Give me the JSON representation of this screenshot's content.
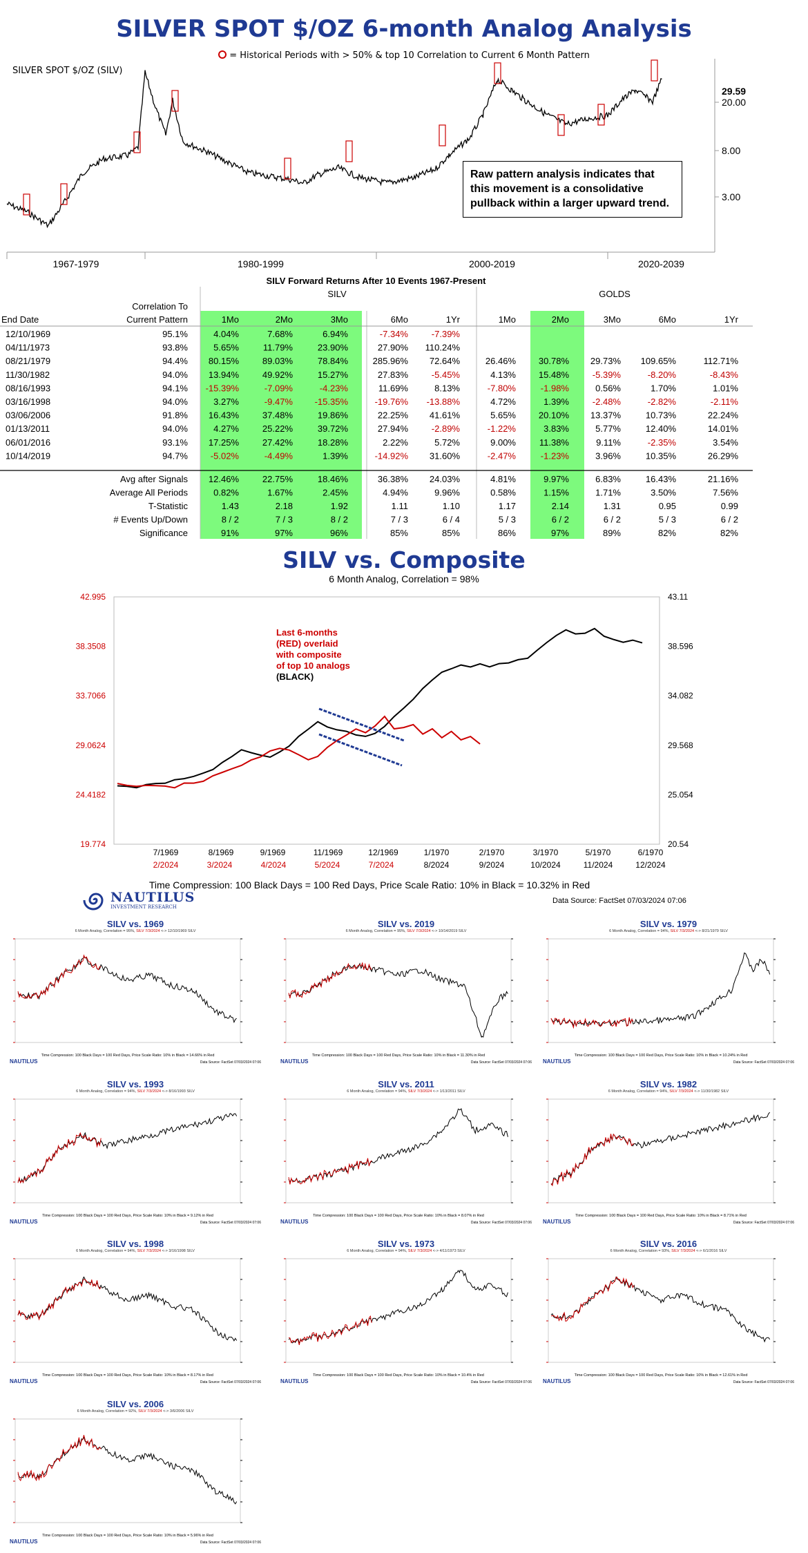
{
  "header": {
    "title": "SILVER SPOT $/OZ 6-month Analog Analysis",
    "legend_text": "= Historical Periods with > 50% & top 10 Correlation to Current 6 Month Pattern",
    "series_label": "SILVER SPOT $/OZ (SILV)"
  },
  "note_box": "Raw pattern analysis indicates that this movement is a consolidative pullback within a larger upward trend.",
  "chart_data": [
    {
      "type": "line",
      "id": "long-history",
      "title": "SILVER SPOT $/OZ (SILV)",
      "y_scale": "log",
      "y_ticks": [
        "3.00",
        "8.00",
        "20.00"
      ],
      "last_value": "29.59",
      "x_groups": [
        "1967-1979",
        "1980-1999",
        "2000-2019",
        "2020-2039"
      ],
      "highlight_dates": [
        "12/10/1969",
        "04/11/1973",
        "08/21/1979",
        "11/30/1982",
        "08/16/1993",
        "03/16/1998",
        "03/06/2006",
        "01/13/2011",
        "06/01/2016",
        "10/14/2019",
        "07/03/2024"
      ]
    },
    {
      "type": "table",
      "id": "forward-returns",
      "title": "SILV Forward Returns After 10 Events 1967-Present",
      "group_labels": [
        "SILV",
        "GOLDS"
      ],
      "label_headers": [
        "End Date",
        "Correlation To Current Pattern"
      ],
      "columns": [
        "1Mo",
        "2Mo",
        "3Mo",
        "6Mo",
        "1Yr",
        "1Mo",
        "2Mo",
        "3Mo",
        "6Mo",
        "1Yr"
      ],
      "rows": [
        {
          "date": "12/10/1969",
          "corr": "95.1%",
          "vals": [
            "4.04%",
            "7.68%",
            "6.94%",
            "-7.34%",
            "-7.39%",
            "",
            "",
            "",
            "",
            ""
          ]
        },
        {
          "date": "04/11/1973",
          "corr": "93.8%",
          "vals": [
            "5.65%",
            "11.79%",
            "23.90%",
            "27.90%",
            "110.24%",
            "",
            "",
            "",
            "",
            ""
          ]
        },
        {
          "date": "08/21/1979",
          "corr": "94.4%",
          "vals": [
            "80.15%",
            "89.03%",
            "78.84%",
            "285.96%",
            "72.64%",
            "26.46%",
            "30.78%",
            "29.73%",
            "109.65%",
            "112.71%"
          ]
        },
        {
          "date": "11/30/1982",
          "corr": "94.0%",
          "vals": [
            "13.94%",
            "49.92%",
            "15.27%",
            "27.83%",
            "-5.45%",
            "4.13%",
            "15.48%",
            "-5.39%",
            "-8.20%",
            "-8.43%"
          ]
        },
        {
          "date": "08/16/1993",
          "corr": "94.1%",
          "vals": [
            "-15.39%",
            "-7.09%",
            "-4.23%",
            "11.69%",
            "8.13%",
            "-7.80%",
            "-1.98%",
            "0.56%",
            "1.70%",
            "1.01%"
          ]
        },
        {
          "date": "03/16/1998",
          "corr": "94.0%",
          "vals": [
            "3.27%",
            "-9.47%",
            "-15.35%",
            "-19.76%",
            "-13.88%",
            "4.72%",
            "1.39%",
            "-2.48%",
            "-2.82%",
            "-2.11%"
          ]
        },
        {
          "date": "03/06/2006",
          "corr": "91.8%",
          "vals": [
            "16.43%",
            "37.48%",
            "19.86%",
            "22.25%",
            "41.61%",
            "5.65%",
            "20.10%",
            "13.37%",
            "10.73%",
            "22.24%"
          ]
        },
        {
          "date": "01/13/2011",
          "corr": "94.0%",
          "vals": [
            "4.27%",
            "25.22%",
            "39.72%",
            "27.94%",
            "-2.89%",
            "-1.22%",
            "3.83%",
            "5.77%",
            "12.40%",
            "14.01%"
          ]
        },
        {
          "date": "06/01/2016",
          "corr": "93.1%",
          "vals": [
            "17.25%",
            "27.42%",
            "18.28%",
            "2.22%",
            "5.72%",
            "9.00%",
            "11.38%",
            "9.11%",
            "-2.35%",
            "3.54%"
          ]
        },
        {
          "date": "10/14/2019",
          "corr": "94.7%",
          "vals": [
            "-5.02%",
            "-4.49%",
            "1.39%",
            "-14.92%",
            "31.60%",
            "-2.47%",
            "-1.23%",
            "3.96%",
            "10.35%",
            "26.29%"
          ]
        }
      ],
      "summary": [
        {
          "label": "Avg after Signals",
          "vals": [
            "12.46%",
            "22.75%",
            "18.46%",
            "36.38%",
            "24.03%",
            "4.81%",
            "9.97%",
            "6.83%",
            "16.43%",
            "21.16%"
          ]
        },
        {
          "label": "Average All Periods",
          "vals": [
            "0.82%",
            "1.67%",
            "2.45%",
            "4.94%",
            "9.96%",
            "0.58%",
            "1.15%",
            "1.71%",
            "3.50%",
            "7.56%"
          ]
        },
        {
          "label": "T-Statistic",
          "vals": [
            "1.43",
            "2.18",
            "1.92",
            "1.11",
            "1.10",
            "1.17",
            "2.14",
            "1.31",
            "0.95",
            "0.99"
          ]
        },
        {
          "label": "# Events Up/Down",
          "vals": [
            "8 / 2",
            "7 / 3",
            "8 / 2",
            "7 / 3",
            "6 / 4",
            "5 / 3",
            "6 / 2",
            "6 / 2",
            "5 / 3",
            "6 / 2"
          ]
        },
        {
          "label": "Significance",
          "vals": [
            "91%",
            "97%",
            "96%",
            "85%",
            "85%",
            "86%",
            "97%",
            "89%",
            "82%",
            "82%"
          ]
        }
      ],
      "highlight_columns": [
        0,
        1,
        2,
        6
      ],
      "colors": {
        "highlight": "#7dfa7d",
        "negative": "#c00000"
      }
    },
    {
      "type": "line",
      "id": "composite",
      "title": "SILV vs. Composite",
      "subtitle": "6 Month Analog, Correlation = 98%",
      "left_y_ticks": [
        "42.995",
        "38.3508",
        "33.7066",
        "29.0624",
        "24.4182",
        "19.774"
      ],
      "right_y_ticks": [
        "43.11",
        "38.596",
        "34.082",
        "29.568",
        "25.054",
        "20.54"
      ],
      "black_x_labels": [
        "7/1969",
        "8/1969",
        "9/1969",
        "11/1969",
        "12/1969",
        "1/1970",
        "2/1970",
        "3/1970",
        "5/1970",
        "6/1970"
      ],
      "red_x_labels": [
        "2/2024",
        "3/2024",
        "4/2024",
        "5/2024",
        "7/2024",
        "8/2024",
        "9/2024",
        "10/2024",
        "11/2024",
        "12/2024"
      ],
      "series": [
        {
          "name": "Last 6-months (RED) overlaid",
          "color": "#cc0000",
          "values": [
            26.0,
            25.9,
            25.8,
            25.9,
            26.0,
            25.9,
            25.8,
            26.0,
            26.2,
            26.4,
            26.7,
            27.0,
            27.3,
            27.8,
            28.1,
            28.5,
            29.0,
            29.4,
            29.2,
            28.6,
            28.2,
            28.5,
            29.4,
            30.0,
            30.5,
            31.0,
            30.6,
            31.4,
            32.2,
            31.0,
            31.2,
            31.5,
            30.6,
            31.0,
            30.2,
            30.8,
            30.0,
            30.4,
            29.6
          ]
        },
        {
          "name": "composite of top 10 analogs (BLACK)",
          "color": "#000000",
          "values": [
            25.9,
            25.8,
            25.8,
            25.9,
            26.0,
            26.1,
            26.4,
            26.6,
            26.8,
            27.1,
            27.4,
            27.9,
            28.6,
            29.1,
            29.0,
            28.7,
            28.6,
            29.0,
            29.6,
            30.3,
            31.1,
            31.6,
            31.2,
            31.0,
            30.8,
            30.6,
            30.4,
            30.6,
            31.2,
            32.1,
            32.9,
            33.8,
            34.8,
            35.6,
            36.3,
            36.6,
            36.8,
            36.8,
            37.0,
            36.8,
            37.0,
            37.1,
            37.3,
            37.6,
            38.2,
            39.0,
            39.6,
            40.0,
            39.8,
            39.9,
            40.2,
            39.6,
            39.2,
            39.0,
            39.1,
            38.9
          ]
        }
      ]
    }
  ],
  "composite_note": {
    "lines": [
      "Last 6-months",
      "(RED) overlaid",
      "with composite",
      "of top 10 analogs"
    ],
    "black_line": "(BLACK)"
  },
  "composite_footer": "Time Compression: 100 Black Days = 100 Red Days,  Price Scale Ratio: 10% in Black = 10.32% in Red",
  "data_source": "Data Source: FactSet   07/03/2024 07:06",
  "logo": {
    "name": "NAUTILUS",
    "tagline": "INVESTMENT RESEARCH"
  },
  "mini_charts": [
    {
      "title": "SILV vs. 1969",
      "sub": "6 Month Analog, Correlation = 95%,",
      "sub_red": "SILV 7/3/2024",
      "sub_end": "<-> 12/10/1969 SILV",
      "foot": "Time Compression: 100 Black Days = 100 Red Days,  Price Scale Ratio: 10% in Black = 14.66% in Red",
      "shape": "hump"
    },
    {
      "title": "SILV vs. 2019",
      "sub": "6 Month Analog, Correlation = 95%,",
      "sub_red": "SILV 7/3/2024",
      "sub_end": "<-> 10/14/2019 SILV",
      "foot": "Time Compression: 100 Black Days = 100 Red Days,  Price Scale Ratio: 10% in Black = 11.30% in Red",
      "shape": "crash"
    },
    {
      "title": "SILV vs. 1979",
      "sub": "6 Month Analog, Correlation = 94%,",
      "sub_red": "SILV 7/3/2024",
      "sub_end": "<-> 8/21/1979 SILV",
      "foot": "Time Compression: 100 Black Days = 100 Red Days,  Price Scale Ratio: 10% in Black = 10.24% in Red",
      "shape": "spike"
    },
    {
      "title": "SILV vs. 1993",
      "sub": "6 Month Analog, Correlation = 94%,",
      "sub_red": "SILV 7/3/2024",
      "sub_end": "<-> 8/16/1993 SILV",
      "foot": "Time Compression: 100 Black Days = 100 Red Days,  Price Scale Ratio: 10% in Black = 9.12% in Red",
      "shape": "uptrend"
    },
    {
      "title": "SILV vs. 2011",
      "sub": "6 Month Analog, Correlation = 94%,",
      "sub_red": "SILV 7/3/2024",
      "sub_end": "<-> 1/13/2011 SILV",
      "foot": "Time Compression: 100 Black Days = 100 Red Days,  Price Scale Ratio: 10% in Black = 8.07% in Red",
      "shape": "rally"
    },
    {
      "title": "SILV vs. 1982",
      "sub": "6 Month Analog, Correlation = 94%,",
      "sub_red": "SILV 7/3/2024",
      "sub_end": "<-> 11/30/1982 SILV",
      "foot": "Time Compression: 100 Black Days = 100 Red Days,  Price Scale Ratio: 10% in Black = 8.71% in Red",
      "shape": "uptrend"
    },
    {
      "title": "SILV vs. 1998",
      "sub": "6 Month Analog, Correlation = 94%,",
      "sub_red": "SILV 7/3/2024",
      "sub_end": "<-> 3/16/1998 SILV",
      "foot": "Time Compression: 100 Black Days = 100 Red Days,  Price Scale Ratio: 10% in Black = 8.17% in Red",
      "shape": "hump"
    },
    {
      "title": "SILV vs. 1973",
      "sub": "6 Month Analog, Correlation = 94%,",
      "sub_red": "SILV 7/3/2024",
      "sub_end": "<-> 4/11/1973 SILV",
      "foot": "Time Compression: 100 Black Days = 100 Red Days,  Price Scale Ratio: 10% in Black = 10.4% in Red",
      "shape": "rally"
    },
    {
      "title": "SILV vs. 2016",
      "sub": "6 Month Analog, Correlation = 93%,",
      "sub_red": "SILV 7/3/2024",
      "sub_end": "<-> 6/1/2016 SILV",
      "foot": "Time Compression: 100 Black Days = 100 Red Days,  Price Scale Ratio: 10% in Black = 12.61% in Red",
      "shape": "hump"
    },
    {
      "title": "SILV vs. 2006",
      "sub": "6 Month Analog, Correlation = 92%,",
      "sub_red": "SILV 7/3/2024",
      "sub_end": "<-> 3/6/2006 SILV",
      "foot": "Time Compression: 100 Black Days = 100 Red Days,  Price Scale Ratio: 10% in Black = 5.96% in Red",
      "shape": "hump"
    }
  ],
  "mini_logo": "NAUTILUS",
  "mini_source": "Data Source: FactSet  07/03/2024 07:06"
}
